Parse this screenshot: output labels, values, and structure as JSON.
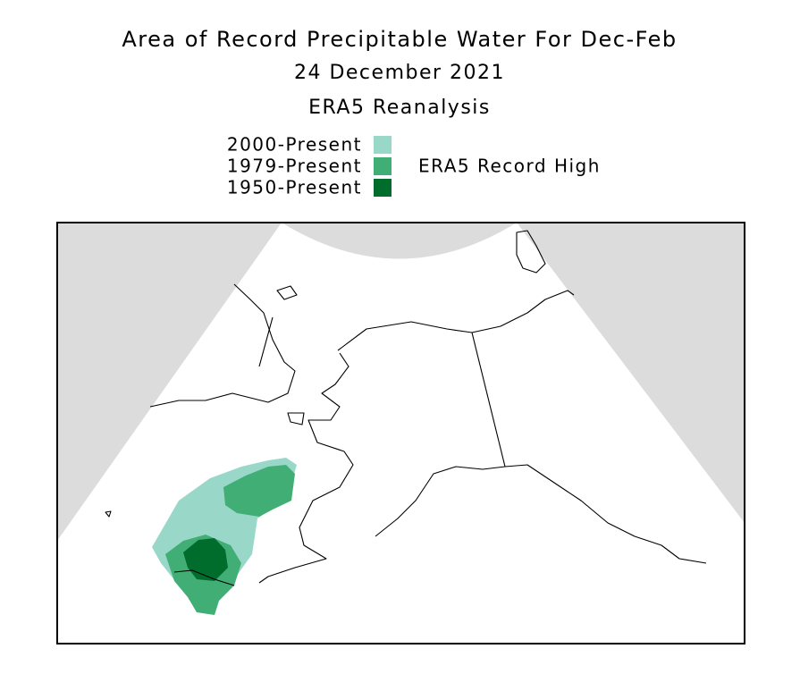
{
  "header": {
    "title": "Area of Record Precipitable Water For Dec-Feb",
    "date": "24 December 2021",
    "source": "ERA5 Reanalysis"
  },
  "legend": {
    "title": "ERA5 Record High",
    "items": [
      {
        "label": "2000-Present",
        "color": "#99d8c9"
      },
      {
        "label": "1979-Present",
        "color": "#41ae76"
      },
      {
        "label": "1950-Present",
        "color": "#006d2c"
      }
    ]
  }
}
